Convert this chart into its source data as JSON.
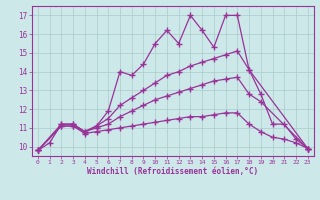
{
  "xlabel": "Windchill (Refroidissement éolien,°C)",
  "background_color": "#cce8e8",
  "line_color": "#993399",
  "grid_color": "#aacccc",
  "xlim": [
    -0.5,
    23.5
  ],
  "ylim": [
    9.5,
    17.5
  ],
  "xticks": [
    0,
    1,
    2,
    3,
    4,
    5,
    6,
    7,
    8,
    9,
    10,
    11,
    12,
    13,
    14,
    15,
    16,
    17,
    18,
    19,
    20,
    21,
    22,
    23
  ],
  "yticks": [
    10,
    11,
    12,
    13,
    14,
    15,
    16,
    17
  ],
  "series": [
    {
      "x": [
        0,
        1,
        2,
        3,
        4,
        5,
        6,
        7,
        8,
        9,
        10,
        11,
        12,
        13,
        14,
        15,
        16,
        17,
        18,
        19,
        20,
        21,
        22,
        23
      ],
      "y": [
        9.8,
        10.2,
        11.2,
        11.2,
        10.8,
        11.1,
        11.9,
        14.0,
        13.8,
        14.4,
        15.5,
        16.2,
        15.5,
        17.0,
        16.2,
        15.3,
        17.0,
        17.0,
        14.1,
        12.8,
        11.2,
        11.2,
        10.4,
        9.9
      ]
    },
    {
      "x": [
        0,
        2,
        3,
        4,
        5,
        6,
        7,
        8,
        9,
        10,
        11,
        12,
        13,
        14,
        15,
        16,
        17,
        18,
        23
      ],
      "y": [
        9.8,
        11.2,
        11.2,
        10.8,
        11.1,
        11.5,
        12.2,
        12.6,
        13.0,
        13.4,
        13.8,
        14.0,
        14.3,
        14.5,
        14.7,
        14.9,
        15.1,
        14.1,
        9.9
      ]
    },
    {
      "x": [
        0,
        2,
        3,
        4,
        5,
        6,
        7,
        8,
        9,
        10,
        11,
        12,
        13,
        14,
        15,
        16,
        17,
        18,
        19,
        23
      ],
      "y": [
        9.8,
        11.1,
        11.1,
        10.8,
        11.0,
        11.2,
        11.6,
        11.9,
        12.2,
        12.5,
        12.7,
        12.9,
        13.1,
        13.3,
        13.5,
        13.6,
        13.7,
        12.8,
        12.4,
        9.9
      ]
    },
    {
      "x": [
        0,
        2,
        3,
        4,
        5,
        6,
        7,
        8,
        9,
        10,
        11,
        12,
        13,
        14,
        15,
        16,
        17,
        18,
        19,
        20,
        21,
        22,
        23
      ],
      "y": [
        9.8,
        11.1,
        11.1,
        10.7,
        10.8,
        10.9,
        11.0,
        11.1,
        11.2,
        11.3,
        11.4,
        11.5,
        11.6,
        11.6,
        11.7,
        11.8,
        11.8,
        11.2,
        10.8,
        10.5,
        10.4,
        10.2,
        9.9
      ]
    }
  ]
}
